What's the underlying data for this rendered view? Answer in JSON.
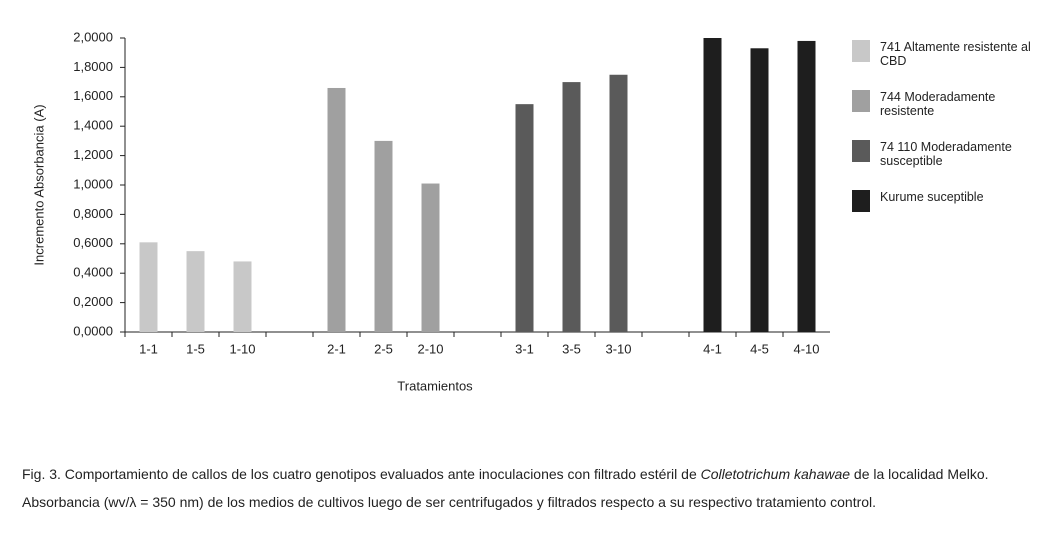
{
  "chart_data": {
    "type": "bar",
    "y_label": "Incremento Absorbancia (A)",
    "x_label": "Tratamientos",
    "categories": [
      "1-1",
      "1-5",
      "1-10",
      null,
      "2-1",
      "2-5",
      "2-10",
      null,
      "3-1",
      "3-5",
      "3-10",
      null,
      "4-1",
      "4-5",
      "4-10"
    ],
    "series": [
      {
        "name": "741 Altamente resistente al CBD",
        "color": "#c8c8c8",
        "values": [
          0.61,
          0.55,
          0.48,
          null,
          null,
          null,
          null,
          null,
          null,
          null,
          null,
          null,
          null,
          null,
          null
        ]
      },
      {
        "name": "744 Moderadamente resistente",
        "color": "#a0a0a0",
        "values": [
          null,
          null,
          null,
          null,
          1.66,
          1.3,
          1.01,
          null,
          null,
          null,
          null,
          null,
          null,
          null,
          null
        ]
      },
      {
        "name": "74 110 Moderadamente susceptible",
        "color": "#5a5a5a",
        "values": [
          null,
          null,
          null,
          null,
          null,
          null,
          null,
          null,
          1.55,
          1.7,
          1.75,
          null,
          null,
          null,
          null
        ]
      },
      {
        "name": "Kurume suceptible",
        "color": "#1e1e1e",
        "values": [
          null,
          null,
          null,
          null,
          null,
          null,
          null,
          null,
          null,
          null,
          null,
          null,
          2.0,
          1.93,
          1.98
        ]
      }
    ],
    "ylim": [
      0,
      2
    ],
    "yticks": [
      {
        "value": 0,
        "label": "0,0000"
      },
      {
        "value": 0.2,
        "label": "0,2000"
      },
      {
        "value": 0.4,
        "label": "0,4000"
      },
      {
        "value": 0.6,
        "label": "0,6000"
      },
      {
        "value": 0.8,
        "label": "0,8000"
      },
      {
        "value": 1,
        "label": "1,0000"
      },
      {
        "value": 1.2,
        "label": "1,2000"
      },
      {
        "value": 1.4,
        "label": "1,4000"
      },
      {
        "value": 1.6,
        "label": "1,6000"
      },
      {
        "value": 1.8,
        "label": "1,8000"
      },
      {
        "value": 2,
        "label": "2,0000"
      }
    ],
    "legend": "right",
    "caption": [
      "Fig. 3. Comportamiento de callos de los cuatro genotipos evaluados ante inoculaciones con filtrado estéril de ",
      "Colletotrichum kahawae",
      " de la localidad Melko. Absorbancia (wv/λ = 350 nm) de los medios de cultivos luego de ser centrifugados y filtrados respecto a su respectivo tratamiento control."
    ]
  }
}
